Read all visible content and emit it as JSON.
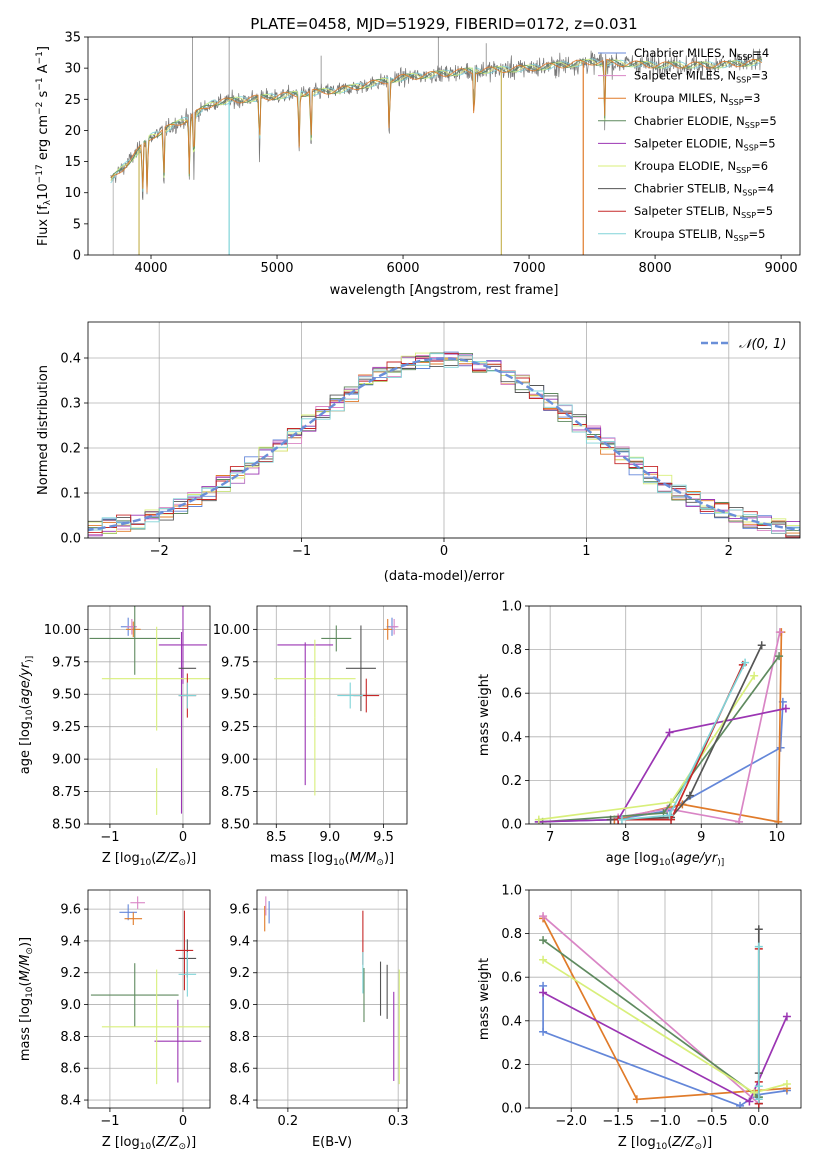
{
  "colors": [
    "#6487d9",
    "#e07b2a",
    "#d985c5",
    "#5f8a5f",
    "#9b35b3",
    "#d8ef7a",
    "#555555",
    "#c62828",
    "#80d4d8"
  ],
  "chart_data": [
    {
      "id": "spectrum",
      "type": "line",
      "title": "PLATE=0458, MJD=51929, FIBERID=0172, z=0.031",
      "xlabel": "wavelength [Angstrom, rest frame]",
      "ylabel_parts": [
        "Flux [f",
        "λ",
        "10",
        "−17",
        " erg cm",
        "−2",
        " s",
        "−1",
        " A",
        "−1",
        "]"
      ],
      "xlim": [
        3500,
        9150
      ],
      "ylim": [
        0,
        35
      ],
      "xticks": [
        4000,
        5000,
        6000,
        7000,
        8000,
        9000
      ],
      "yticks": [
        0,
        5,
        10,
        15,
        20,
        25,
        30,
        35
      ],
      "legend_placement": "upper right",
      "legend": [
        {
          "label": "Chabrier MILES, N",
          "sub": "SSP",
          "eq": "=4"
        },
        {
          "label": "Salpeter MILES, N",
          "sub": "SSP",
          "eq": "=3"
        },
        {
          "label": "Kroupa MILES, N",
          "sub": "SSP",
          "eq": "=3"
        },
        {
          "label": "Chabrier ELODIE, N",
          "sub": "SSP",
          "eq": "=5"
        },
        {
          "label": "Salpeter ELODIE, N",
          "sub": "SSP",
          "eq": "=5"
        },
        {
          "label": "Kroupa ELODIE, N",
          "sub": "SSP",
          "eq": "=6"
        },
        {
          "label": "Chabrier STELIB, N",
          "sub": "SSP",
          "eq": "=4"
        },
        {
          "label": "Salpeter STELIB, N",
          "sub": "SSP",
          "eq": "=5"
        },
        {
          "label": "Kroupa STELIB, N",
          "sub": "SSP",
          "eq": "=5"
        }
      ],
      "continuum": [
        [
          3680,
          12
        ],
        [
          3800,
          14.5
        ],
        [
          4000,
          19
        ],
        [
          4300,
          22
        ],
        [
          4500,
          24.5
        ],
        [
          5000,
          25.5
        ],
        [
          5500,
          26.5
        ],
        [
          6000,
          28.5
        ],
        [
          6500,
          29.5
        ],
        [
          7000,
          30
        ],
        [
          7500,
          31
        ],
        [
          8000,
          30.5
        ],
        [
          8500,
          30.5
        ],
        [
          8850,
          31
        ]
      ],
      "absorption_lines": [
        3934,
        3969,
        4102,
        4304,
        4340,
        4861,
        5175,
        5270,
        5890,
        6563,
        7600
      ],
      "model_cutoffs": [
        [
          7430,
          "#e07b2a"
        ],
        [
          6780,
          "#c9b65a"
        ],
        [
          3905,
          "#c9b65a"
        ],
        [
          4620,
          "#80d4d8"
        ]
      ]
    },
    {
      "id": "residuals",
      "type": "histogram",
      "xlabel": "(data-model)/error",
      "ylabel": "Normed distribution",
      "xlim": [
        -2.5,
        2.5
      ],
      "ylim": [
        0,
        0.48
      ],
      "xticks": [
        -2,
        -1,
        0,
        1,
        2
      ],
      "yticks": [
        0.0,
        0.1,
        0.2,
        0.3,
        0.4
      ],
      "grid": true,
      "bin_width": 0.1,
      "reference_label": "𝒩(0, 1)",
      "legend_placement": "upper right"
    },
    {
      "id": "age-vs-Z",
      "type": "scatter",
      "xlabel_parts": [
        "Z [log",
        "10",
        "(",
        "Z/Z",
        "⊙",
        ")]"
      ],
      "ylabel_parts": [
        "age  [log",
        "10",
        "(",
        "age/yr",
        ")]"
      ],
      "xlim": [
        -1.3,
        0.37
      ],
      "ylim": [
        8.5,
        10.18
      ],
      "xticks": [
        -1,
        0
      ],
      "yticks": [
        8.5,
        8.75,
        9.0,
        9.25,
        9.5,
        9.75,
        10.0
      ],
      "grid": true,
      "points": [
        {
          "c": 0,
          "x": -0.75,
          "xe": 0.1,
          "y": 10.02,
          "ye": 0.07
        },
        {
          "c": 1,
          "x": -0.68,
          "xe": 0.1,
          "y": 10.0,
          "ye": 0.06
        },
        {
          "c": 2,
          "x": -0.7,
          "xe": 0.07,
          "y": 10.02,
          "ye": 0.06
        },
        {
          "c": 3,
          "x": -0.66,
          "xe": 0.62,
          "y": 9.93,
          "ye": 0.28
        },
        {
          "c": 4,
          "x": 0.0,
          "xe": 0.33,
          "y": 9.88,
          "ye": 0.3
        },
        {
          "c": 4,
          "x": -0.02,
          "xe": 0.0,
          "y": 9.28,
          "ye": 0.7
        },
        {
          "c": 5,
          "x": -0.36,
          "xe": 0.75,
          "y": 9.62,
          "ye": 0.4
        },
        {
          "c": 5,
          "x": -0.36,
          "xe": 0.0,
          "y": 8.75,
          "ye": 0.18
        },
        {
          "c": 6,
          "x": 0.06,
          "xe": 0.12,
          "y": 9.7,
          "ye": 0.0
        },
        {
          "c": 7,
          "x": 0.06,
          "xe": 0.12,
          "y": 9.49,
          "ye": 0.17
        },
        {
          "c": 8,
          "x": 0.06,
          "xe": 0.12,
          "y": 9.49,
          "ye": 0.1
        }
      ]
    },
    {
      "id": "age-vs-mass",
      "type": "scatter",
      "xlabel_parts": [
        "mass [log",
        "10",
        "(",
        "M/M",
        "⊙",
        ")]"
      ],
      "ylabel_parts": [],
      "xlim": [
        8.32,
        9.72
      ],
      "ylim": [
        8.5,
        10.18
      ],
      "xticks": [
        8.5,
        9.0,
        9.5
      ],
      "yticks": [
        8.5,
        8.75,
        9.0,
        9.25,
        9.5,
        9.75,
        10.0
      ],
      "grid": true,
      "points": [
        {
          "c": 0,
          "x": 9.58,
          "xe": 0.05,
          "y": 10.02,
          "ye": 0.07
        },
        {
          "c": 1,
          "x": 9.54,
          "xe": 0.04,
          "y": 10.0,
          "ye": 0.08
        },
        {
          "c": 2,
          "x": 9.6,
          "xe": 0.04,
          "y": 10.02,
          "ye": 0.06
        },
        {
          "c": 3,
          "x": 9.06,
          "xe": 0.14,
          "y": 9.93,
          "ye": 0.1
        },
        {
          "c": 4,
          "x": 8.77,
          "xe": 0.26,
          "y": 9.88,
          "ye": 0.0
        },
        {
          "c": 4,
          "x": 8.77,
          "xe": 0.0,
          "y": 9.35,
          "ye": 0.55
        },
        {
          "c": 5,
          "x": 8.86,
          "xe": 0.38,
          "y": 9.62,
          "ye": 0.3
        },
        {
          "c": 5,
          "x": 8.86,
          "xe": 0.0,
          "y": 9.02,
          "ye": 0.3
        },
        {
          "c": 6,
          "x": 9.29,
          "xe": 0.14,
          "y": 9.7,
          "ye": 0.33
        },
        {
          "c": 7,
          "x": 9.34,
          "xe": 0.12,
          "y": 9.49,
          "ye": 0.13
        },
        {
          "c": 8,
          "x": 9.19,
          "xe": 0.12,
          "y": 9.49,
          "ye": 0.1
        }
      ]
    },
    {
      "id": "mass-weight-vs-age",
      "type": "line",
      "xlabel_parts": [
        "age  [log",
        "10",
        "(",
        "age/yr",
        ")]"
      ],
      "ylabel": "mass weight",
      "xlim": [
        6.72,
        10.32
      ],
      "ylim": [
        0,
        1.0
      ],
      "xticks": [
        7,
        8,
        9,
        10
      ],
      "yticks": [
        0.0,
        0.2,
        0.4,
        0.6,
        0.8,
        1.0
      ],
      "grid": true,
      "series": [
        {
          "c": 0,
          "x": [
            6.85,
            7.85,
            8.55,
            10.05,
            10.08
          ],
          "y": [
            0.01,
            0.02,
            0.06,
            0.35,
            0.56
          ]
        },
        {
          "c": 1,
          "x": [
            7.85,
            8.75,
            10.02,
            10.06
          ],
          "y": [
            0.02,
            0.09,
            0.01,
            0.88
          ]
        },
        {
          "c": 2,
          "x": [
            7.9,
            8.55,
            9.5,
            10.04
          ],
          "y": [
            0.03,
            0.07,
            0.01,
            0.88
          ]
        },
        {
          "c": 3,
          "x": [
            6.9,
            8.5,
            10.03
          ],
          "y": [
            0.01,
            0.05,
            0.77
          ]
        },
        {
          "c": 4,
          "x": [
            6.85,
            7.9,
            8.58,
            10.12
          ],
          "y": [
            0.01,
            0.02,
            0.42,
            0.53
          ]
        },
        {
          "c": 5,
          "x": [
            6.85,
            8.6,
            9.7
          ],
          "y": [
            0.02,
            0.1,
            0.68
          ]
        },
        {
          "c": 6,
          "x": [
            7.8,
            8.6,
            8.85,
            9.8
          ],
          "y": [
            0.02,
            0.03,
            0.13,
            0.82
          ]
        },
        {
          "c": 7,
          "x": [
            7.9,
            8.6,
            9.55
          ],
          "y": [
            0.02,
            0.02,
            0.73
          ]
        },
        {
          "c": 8,
          "x": [
            7.95,
            8.58,
            9.58
          ],
          "y": [
            0.02,
            0.04,
            0.74
          ]
        }
      ]
    },
    {
      "id": "mass-vs-Z",
      "type": "scatter",
      "xlabel_parts": [
        "Z [log",
        "10",
        "(",
        "Z/Z",
        "⊙",
        ")]"
      ],
      "ylabel_parts": [
        "mass [log",
        "10",
        "(",
        "M/M",
        "⊙",
        ")]"
      ],
      "xlim": [
        -1.3,
        0.37
      ],
      "ylim": [
        8.35,
        9.72
      ],
      "xticks": [
        -1,
        0
      ],
      "yticks": [
        8.4,
        8.6,
        8.8,
        9.0,
        9.2,
        9.4,
        9.6
      ],
      "grid": true,
      "points": [
        {
          "c": 0,
          "x": -0.75,
          "xe": 0.12,
          "y": 9.58,
          "ye": 0.05
        },
        {
          "c": 1,
          "x": -0.68,
          "xe": 0.12,
          "y": 9.54,
          "ye": 0.04
        },
        {
          "c": 2,
          "x": -0.62,
          "xe": 0.1,
          "y": 9.64,
          "ye": 0.04
        },
        {
          "c": 3,
          "x": -0.66,
          "xe": 0.6,
          "y": 9.06,
          "ye": 0.2
        },
        {
          "c": 4,
          "x": -0.07,
          "xe": 0.32,
          "y": 8.77,
          "ye": 0.26
        },
        {
          "c": 5,
          "x": -0.36,
          "xe": 0.75,
          "y": 8.86,
          "ye": 0.36
        },
        {
          "c": 6,
          "x": 0.06,
          "xe": 0.12,
          "y": 9.29,
          "ye": 0.12
        },
        {
          "c": 7,
          "x": 0.02,
          "xe": 0.12,
          "y": 9.34,
          "ye": 0.25
        },
        {
          "c": 8,
          "x": 0.06,
          "xe": 0.12,
          "y": 9.19,
          "ye": 0.14
        }
      ]
    },
    {
      "id": "mass-vs-ebv",
      "type": "scatter",
      "xlabel": "E(B-V)",
      "ylabel_parts": [],
      "xlim": [
        0.172,
        0.308
      ],
      "ylim": [
        8.35,
        9.72
      ],
      "xticks": [
        0.2,
        0.3
      ],
      "yticks": [
        8.4,
        8.6,
        8.8,
        9.0,
        9.2,
        9.4,
        9.6
      ],
      "grid": true,
      "points": [
        {
          "c": 0,
          "x": 0.183,
          "xe": 0.0,
          "y": 9.58,
          "ye": 0.07
        },
        {
          "c": 1,
          "x": 0.179,
          "xe": 0.0,
          "y": 9.54,
          "ye": 0.08
        },
        {
          "c": 2,
          "x": 0.18,
          "xe": 0.0,
          "y": 9.62,
          "ye": 0.06
        },
        {
          "c": 3,
          "x": 0.269,
          "xe": 0.0,
          "y": 9.06,
          "ye": 0.17
        },
        {
          "c": 4,
          "x": 0.296,
          "xe": 0.0,
          "y": 8.8,
          "ye": 0.28
        },
        {
          "c": 5,
          "x": 0.301,
          "xe": 0.0,
          "y": 8.86,
          "ye": 0.36
        },
        {
          "c": 6,
          "x": 0.284,
          "xe": 0.0,
          "y": 9.1,
          "ye": 0.17
        },
        {
          "c": 7,
          "x": 0.268,
          "xe": 0.0,
          "y": 9.42,
          "ye": 0.17
        },
        {
          "c": 8,
          "x": 0.268,
          "xe": 0.0,
          "y": 9.2,
          "ye": 0.13
        },
        {
          "c": 6,
          "x": 0.29,
          "xe": 0.0,
          "y": 9.08,
          "ye": 0.17
        }
      ]
    },
    {
      "id": "mass-weight-vs-Z",
      "type": "line",
      "xlabel_parts": [
        "Z [log",
        "10",
        "(",
        "Z/Z",
        "⊙",
        ")]"
      ],
      "ylabel": "mass weight",
      "xlim": [
        -2.45,
        0.45
      ],
      "ylim": [
        0,
        1.0
      ],
      "xticks": [
        -2.0,
        -1.5,
        -1.0,
        -0.5,
        0.0
      ],
      "yticks": [
        0.0,
        0.2,
        0.4,
        0.6,
        0.8,
        1.0
      ],
      "grid": true,
      "series": [
        {
          "c": 0,
          "x": [
            -2.3,
            -2.3,
            -0.2,
            -0.02,
            0.3
          ],
          "y": [
            0.56,
            0.35,
            0.01,
            0.06,
            0.08
          ]
        },
        {
          "c": 1,
          "x": [
            -2.3,
            -1.3,
            0.3
          ],
          "y": [
            0.87,
            0.04,
            0.09
          ]
        },
        {
          "c": 2,
          "x": [
            -2.3,
            0.0
          ],
          "y": [
            0.88,
            0.02
          ]
        },
        {
          "c": 3,
          "x": [
            -2.3,
            0.0,
            0.0
          ],
          "y": [
            0.77,
            0.05,
            0.05
          ]
        },
        {
          "c": 4,
          "x": [
            -2.3,
            -0.1,
            0.3
          ],
          "y": [
            0.53,
            0.03,
            0.42
          ]
        },
        {
          "c": 5,
          "x": [
            -2.3,
            -0.05,
            0.3
          ],
          "y": [
            0.68,
            0.07,
            0.11
          ]
        },
        {
          "c": 6,
          "x": [
            0.0,
            0.0,
            0.0
          ],
          "y": [
            0.82,
            0.16,
            0.02
          ]
        },
        {
          "c": 7,
          "x": [
            0.0,
            0.0,
            0.0
          ],
          "y": [
            0.73,
            0.12,
            0.02
          ]
        },
        {
          "c": 8,
          "x": [
            0.0,
            0.0,
            0.0
          ],
          "y": [
            0.74,
            0.04,
            0.1
          ]
        }
      ]
    }
  ]
}
